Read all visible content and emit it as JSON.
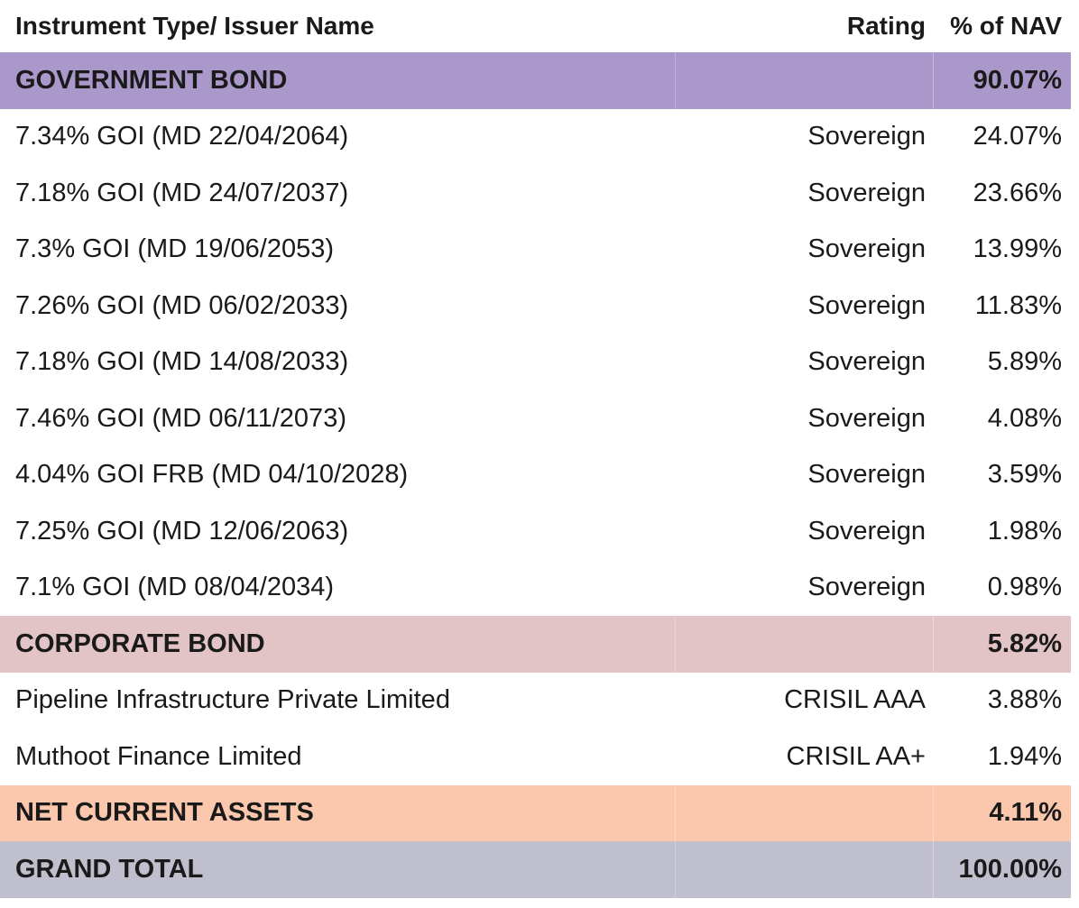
{
  "table": {
    "columns": {
      "name": "Instrument Type/ Issuer Name",
      "rating": "Rating",
      "nav": "% of NAV"
    },
    "sections": [
      {
        "title": "GOVERNMENT BOND",
        "total": "90.07%",
        "color": "#ab98cb",
        "rows": [
          {
            "name": "7.34% GOI (MD 22/04/2064)",
            "rating": "Sovereign",
            "nav": "24.07%"
          },
          {
            "name": "7.18% GOI (MD 24/07/2037)",
            "rating": "Sovereign",
            "nav": "23.66%"
          },
          {
            "name": "7.3% GOI (MD 19/06/2053)",
            "rating": "Sovereign",
            "nav": "13.99%"
          },
          {
            "name": "7.26% GOI (MD 06/02/2033)",
            "rating": "Sovereign",
            "nav": "11.83%"
          },
          {
            "name": "7.18% GOI (MD 14/08/2033)",
            "rating": "Sovereign",
            "nav": "5.89%"
          },
          {
            "name": "7.46% GOI (MD 06/11/2073)",
            "rating": "Sovereign",
            "nav": "4.08%"
          },
          {
            "name": "4.04% GOI FRB (MD 04/10/2028)",
            "rating": "Sovereign",
            "nav": "3.59%"
          },
          {
            "name": "7.25% GOI (MD 12/06/2063)",
            "rating": "Sovereign",
            "nav": "1.98%"
          },
          {
            "name": "7.1% GOI (MD 08/04/2034)",
            "rating": "Sovereign",
            "nav": "0.98%"
          }
        ]
      },
      {
        "title": "CORPORATE BOND",
        "total": "5.82%",
        "color": "#e2c3c6",
        "rows": [
          {
            "name": "Pipeline Infrastructure Private Limited",
            "rating": "CRISIL AAA",
            "nav": "3.88%"
          },
          {
            "name": "Muthoot Finance Limited",
            "rating": "CRISIL AA+",
            "nav": "1.94%"
          }
        ]
      },
      {
        "title": "NET CURRENT ASSETS",
        "total": "4.11%",
        "color": "#fbc8ad",
        "rows": []
      },
      {
        "title": "GRAND TOTAL",
        "total": "100.00%",
        "color": "#c0bfce",
        "rows": []
      }
    ]
  }
}
